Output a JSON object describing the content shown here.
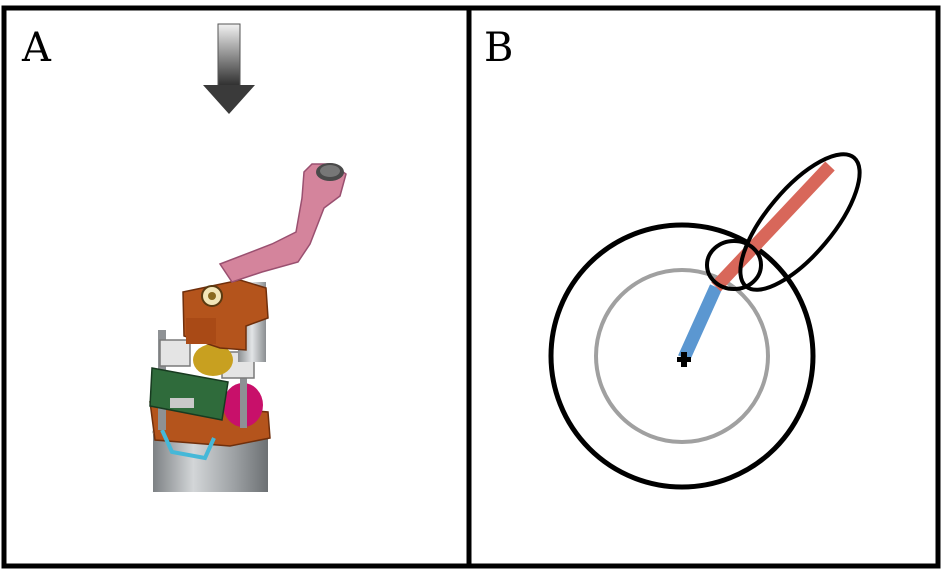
{
  "panels": {
    "a": {
      "label": "A"
    },
    "b": {
      "label": "B"
    }
  },
  "colors": {
    "frame": "#000000",
    "arm_link": "#d4849c",
    "bracket": "#b4541c",
    "motor_body": "#a9acae",
    "circuit_board": "#2f6b3b",
    "wire": "#45b8d8",
    "magnet": "#c8106a",
    "arrow_dark": "#3a3a3a",
    "proximal_segment": "#5b97d1",
    "distal_segment": "#d8675a",
    "inner_circle": "#a0a0a0",
    "outer_circle": "#000000"
  }
}
